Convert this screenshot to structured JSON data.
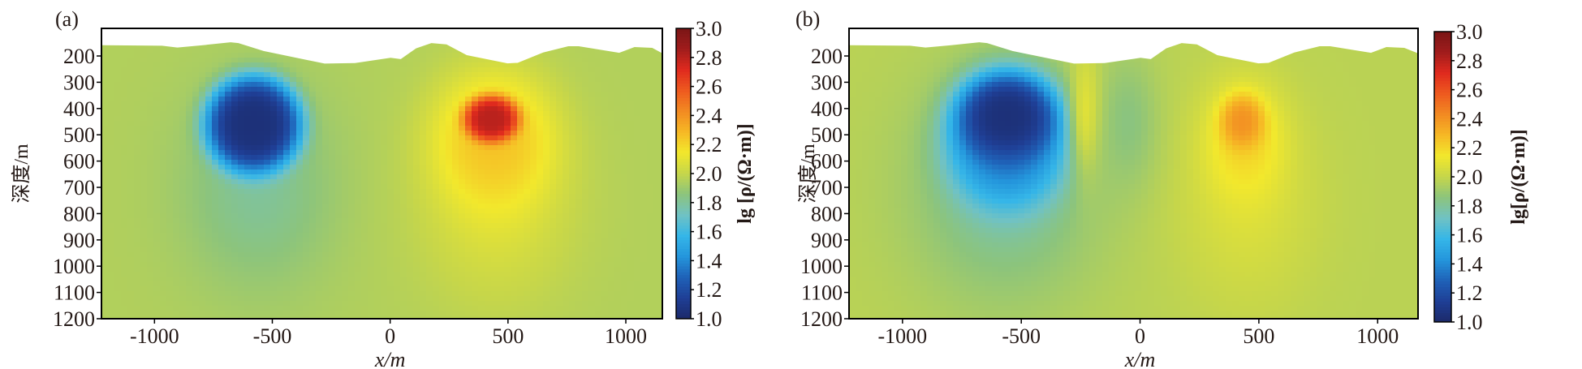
{
  "chart_data": [
    {
      "type": "heatmap",
      "panel_label": "(a)",
      "xlabel": "x/m",
      "ylabel": "深度/m",
      "colorbar_label": "lg [ρ/(Ω·m)]",
      "xlim": [
        -1225,
        1155
      ],
      "ylim": [
        1200,
        95
      ],
      "xticks": [
        "-1000",
        "-500",
        "0",
        "500",
        "1000"
      ],
      "yticks": [
        "200",
        "300",
        "400",
        "500",
        "600",
        "700",
        "800",
        "900",
        "1000",
        "1100",
        "1200"
      ],
      "colorbar_ticks": [
        "1.0",
        "1.2",
        "1.4",
        "1.6",
        "1.8",
        "2.0",
        "2.2",
        "2.4",
        "2.6",
        "2.8",
        "3.0"
      ],
      "clim": [
        1.0,
        3.0
      ],
      "background_value": 1.95,
      "anomalies": [
        {
          "x": -580,
          "depth": 460,
          "value": 1.05,
          "rx": 210,
          "rz": 190,
          "sharpness": 2.2
        },
        {
          "x": -560,
          "depth": 700,
          "value": 1.8,
          "rx": 320,
          "rz": 380,
          "sharpness": 1
        },
        {
          "x": 430,
          "depth": 440,
          "value": 2.8,
          "rx": 120,
          "rz": 90,
          "sharpness": 2.2
        },
        {
          "x": 440,
          "depth": 520,
          "value": 2.25,
          "rx": 260,
          "rz": 260,
          "sharpness": 1.3
        },
        {
          "x": 450,
          "depth": 750,
          "value": 2.08,
          "rx": 320,
          "rz": 380,
          "sharpness": 1
        }
      ],
      "surface_profile": [
        [
          -1226,
          159
        ],
        [
          -968,
          161
        ],
        [
          -903,
          168
        ],
        [
          -795,
          159
        ],
        [
          -677,
          148
        ],
        [
          -644,
          151
        ],
        [
          -537,
          181
        ],
        [
          -278,
          229
        ],
        [
          -149,
          227
        ],
        [
          2,
          207
        ],
        [
          45,
          212
        ],
        [
          110,
          171
        ],
        [
          175,
          151
        ],
        [
          239,
          156
        ],
        [
          325,
          197
        ],
        [
          498,
          228
        ],
        [
          541,
          226
        ],
        [
          649,
          187
        ],
        [
          756,
          163
        ],
        [
          800,
          163
        ],
        [
          972,
          188
        ],
        [
          1037,
          166
        ],
        [
          1112,
          169
        ],
        [
          1155,
          190
        ]
      ]
    },
    {
      "type": "heatmap",
      "panel_label": "(b)",
      "xlabel": "x/m",
      "ylabel": "深度/m",
      "colorbar_label": "lg[ρ/(Ω·m)]",
      "xlim": [
        -1225,
        1170
      ],
      "ylim": [
        1200,
        95
      ],
      "xticks": [
        "-1000",
        "-500",
        "0",
        "500",
        "1000"
      ],
      "yticks": [
        "200",
        "300",
        "400",
        "500",
        "600",
        "700",
        "800",
        "900",
        "1000",
        "1100",
        "1200"
      ],
      "colorbar_ticks": [
        "1.0",
        "1.2",
        "1.4",
        "1.6",
        "1.8",
        "2.0",
        "2.2",
        "2.4",
        "2.6",
        "2.8",
        "3.0"
      ],
      "clim": [
        1.0,
        3.0
      ],
      "background_value": 1.97,
      "anomalies": [
        {
          "x": -560,
          "depth": 430,
          "value": 1.05,
          "rx": 200,
          "rz": 160,
          "sharpness": 1.6
        },
        {
          "x": -560,
          "depth": 520,
          "value": 1.35,
          "rx": 260,
          "rz": 260,
          "sharpness": 1.6
        },
        {
          "x": -570,
          "depth": 700,
          "value": 1.78,
          "rx": 380,
          "rz": 420,
          "sharpness": 1
        },
        {
          "x": 430,
          "depth": 450,
          "value": 2.4,
          "rx": 90,
          "rz": 100,
          "sharpness": 1.4
        },
        {
          "x": 440,
          "depth": 520,
          "value": 2.2,
          "rx": 170,
          "rz": 220,
          "sharpness": 1.2
        },
        {
          "x": 450,
          "depth": 750,
          "value": 2.07,
          "rx": 280,
          "rz": 380,
          "sharpness": 1
        },
        {
          "x": -50,
          "depth": 450,
          "value": 1.85,
          "rx": 120,
          "rz": 250,
          "sharpness": 1
        },
        {
          "x": -230,
          "depth": 400,
          "value": 2.08,
          "rx": 60,
          "rz": 250,
          "sharpness": 1
        }
      ],
      "surface_profile": [
        [
          -1226,
          159
        ],
        [
          -968,
          161
        ],
        [
          -903,
          168
        ],
        [
          -795,
          159
        ],
        [
          -677,
          148
        ],
        [
          -644,
          151
        ],
        [
          -537,
          181
        ],
        [
          -278,
          229
        ],
        [
          -149,
          227
        ],
        [
          2,
          207
        ],
        [
          45,
          212
        ],
        [
          110,
          171
        ],
        [
          175,
          151
        ],
        [
          239,
          156
        ],
        [
          325,
          197
        ],
        [
          498,
          228
        ],
        [
          541,
          226
        ],
        [
          649,
          187
        ],
        [
          756,
          163
        ],
        [
          800,
          163
        ],
        [
          972,
          188
        ],
        [
          1037,
          166
        ],
        [
          1112,
          169
        ],
        [
          1170,
          190
        ]
      ]
    }
  ],
  "colormap": [
    "#1c2a6a",
    "#1f3f96",
    "#1f62b8",
    "#2496dc",
    "#35b6e8",
    "#70c2c4",
    "#8cc47c",
    "#c6d64a",
    "#f2e82c",
    "#f6b825",
    "#f28a22",
    "#ee5a1f",
    "#e02a1e",
    "#a01c1c",
    "#7a1616"
  ]
}
